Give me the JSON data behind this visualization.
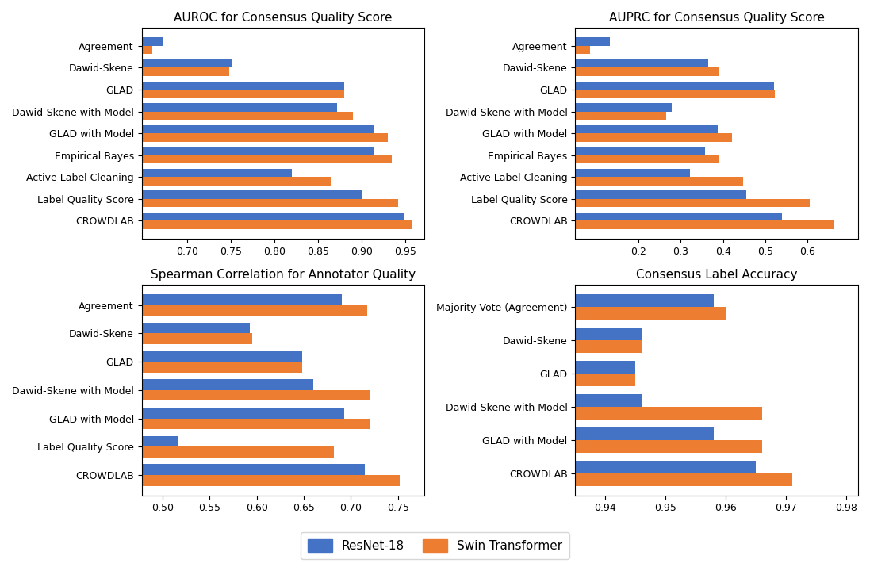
{
  "plots": [
    {
      "title": "AUROC for Consensus Quality Score",
      "categories": [
        "Agreement",
        "Dawid-Skene",
        "GLAD",
        "Dawid-Skene with Model",
        "GLAD with Model",
        "Empirical Bayes",
        "Active Label Cleaning",
        "Label Quality Score",
        "CROWDLAB"
      ],
      "resnet": [
        0.672,
        0.752,
        0.88,
        0.872,
        0.915,
        0.915,
        0.82,
        0.9,
        0.948
      ],
      "swin": [
        0.66,
        0.748,
        0.88,
        0.89,
        0.93,
        0.935,
        0.865,
        0.942,
        0.957
      ],
      "xlim": [
        0.648,
        0.972
      ],
      "xticks": [
        0.7,
        0.75,
        0.8,
        0.85,
        0.9,
        0.95
      ]
    },
    {
      "title": "AUPRC for Consensus Quality Score",
      "categories": [
        "Agreement",
        "Dawid-Skene",
        "GLAD",
        "Dawid-Skene with Model",
        "GLAD with Model",
        "Empirical Bayes",
        "Active Label Cleaning",
        "Label Quality Score",
        "CROWDLAB"
      ],
      "resnet": [
        0.132,
        0.365,
        0.52,
        0.278,
        0.388,
        0.358,
        0.322,
        0.455,
        0.54
      ],
      "swin": [
        0.085,
        0.39,
        0.522,
        0.265,
        0.422,
        0.392,
        0.448,
        0.605,
        0.662
      ],
      "xlim": [
        0.05,
        0.72
      ],
      "xticks": [
        0.2,
        0.3,
        0.4,
        0.5,
        0.6
      ]
    },
    {
      "title": "Spearman Correlation for Annotator Quality",
      "categories": [
        "Agreement",
        "Dawid-Skene",
        "GLAD",
        "Dawid-Skene with Model",
        "GLAD with Model",
        "Label Quality Score",
        "CROWDLAB"
      ],
      "resnet": [
        0.69,
        0.593,
        0.648,
        0.66,
        0.693,
        0.517,
        0.715
      ],
      "swin": [
        0.717,
        0.595,
        0.648,
        0.72,
        0.72,
        0.682,
        0.752
      ],
      "xlim": [
        0.478,
        0.778
      ],
      "xticks": [
        0.5,
        0.55,
        0.6,
        0.65,
        0.7,
        0.75
      ]
    },
    {
      "title": "Consensus Label Accuracy",
      "categories": [
        "Majority Vote (Agreement)",
        "Dawid-Skene",
        "GLAD",
        "Dawid-Skene with Model",
        "GLAD with Model",
        "CROWDLAB"
      ],
      "resnet": [
        0.958,
        0.946,
        0.945,
        0.946,
        0.958,
        0.965
      ],
      "swin": [
        0.96,
        0.946,
        0.945,
        0.966,
        0.966,
        0.971
      ],
      "xlim": [
        0.935,
        0.982
      ],
      "xticks": [
        0.94,
        0.95,
        0.96,
        0.97,
        0.98
      ]
    }
  ],
  "colors": {
    "resnet": "#4472C4",
    "swin": "#ED7D31"
  },
  "legend_labels": [
    "ResNet-18",
    "Swin Transformer"
  ]
}
